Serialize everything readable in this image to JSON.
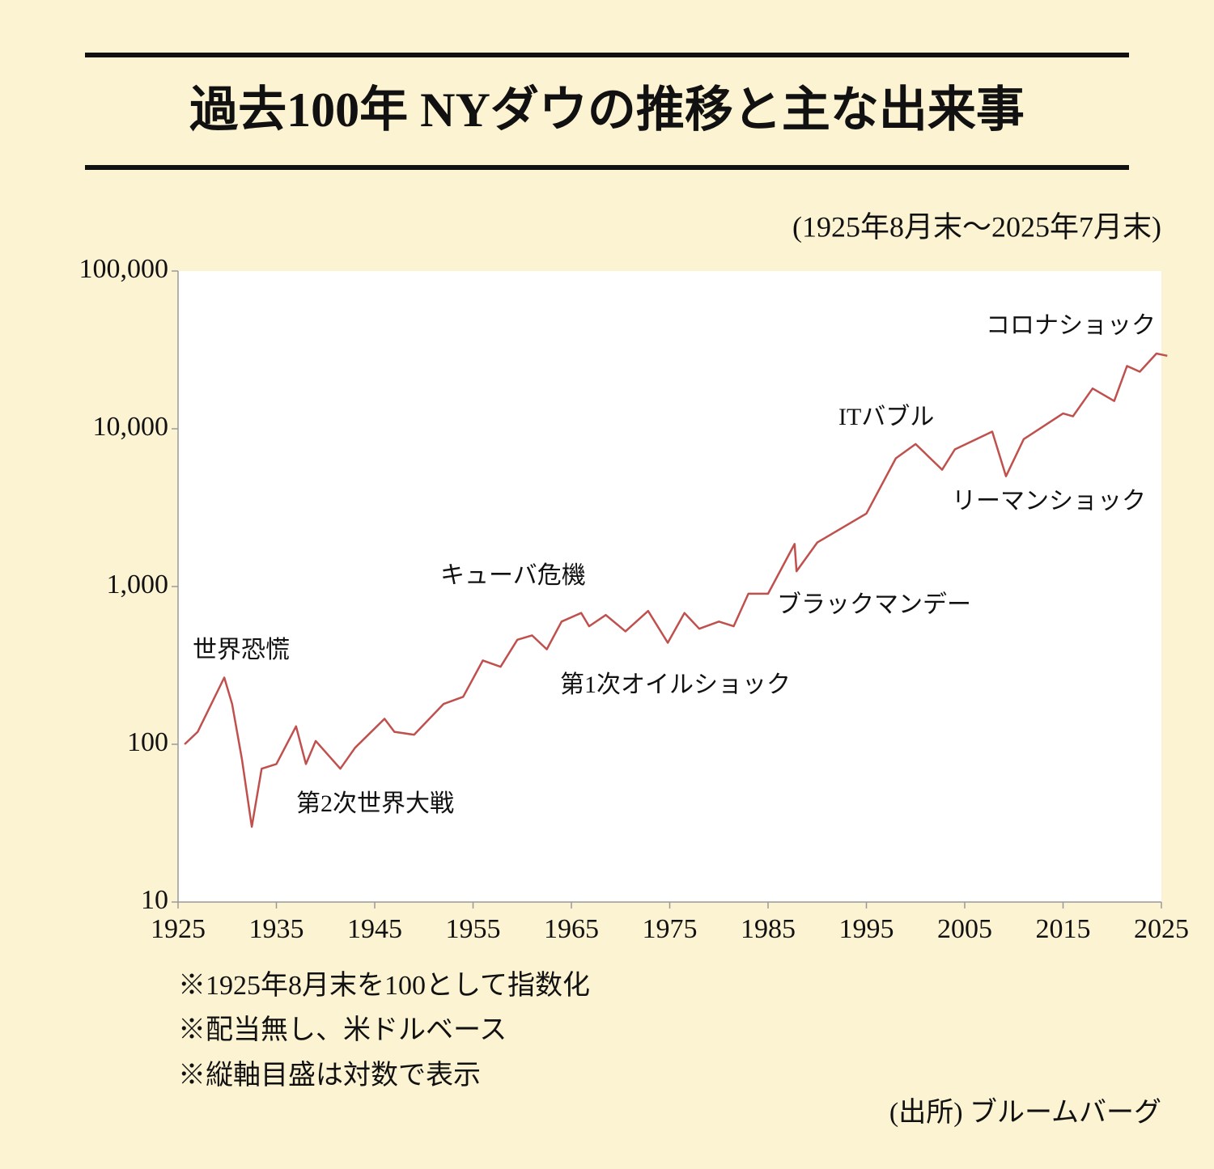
{
  "chart_data": {
    "type": "line",
    "title": "過去100年 NYダウの推移と主な出来事",
    "subtitle": "(1925年8月末～2025年7月末)",
    "log_scale": true,
    "xlim": [
      1925,
      2025
    ],
    "xticks": [
      1925,
      1935,
      1945,
      1955,
      1965,
      1975,
      1985,
      1995,
      2005,
      2015,
      2025
    ],
    "ylim": [
      10,
      100000
    ],
    "yticks": [
      {
        "value": 10,
        "label": "10"
      },
      {
        "value": 100,
        "label": "100"
      },
      {
        "value": 1000,
        "label": "1,000"
      },
      {
        "value": 10000,
        "label": "10,000"
      },
      {
        "value": 100000,
        "label": "100,000"
      }
    ],
    "x": [
      1925.67,
      1927,
      1929.7,
      1930.5,
      1931.5,
      1932.5,
      1933.5,
      1935,
      1937,
      1938,
      1939,
      1941.5,
      1943,
      1946,
      1947,
      1949,
      1952,
      1954,
      1956,
      1957.8,
      1959.5,
      1961,
      1962.5,
      1964,
      1966,
      1966.8,
      1968.5,
      1970.5,
      1972.8,
      1974.8,
      1976.5,
      1978,
      1980,
      1981.5,
      1983,
      1985,
      1987.7,
      1987.9,
      1990,
      1995,
      1998,
      2000,
      2002.7,
      2004,
      2007.8,
      2009.2,
      2011,
      2015,
      2016,
      2018,
      2020.2,
      2021.5,
      2022.8,
      2024.5,
      2025.6
    ],
    "series": [
      {
        "color": "#c0504d",
        "values": [
          100,
          120,
          265,
          180,
          80,
          30,
          70,
          75,
          130,
          75,
          105,
          70,
          95,
          145,
          120,
          115,
          180,
          200,
          340,
          310,
          460,
          490,
          400,
          600,
          680,
          560,
          660,
          520,
          700,
          440,
          680,
          540,
          600,
          560,
          900,
          900,
          1860,
          1250,
          1900,
          2900,
          6500,
          8000,
          5500,
          7400,
          9600,
          5000,
          8600,
          12500,
          12000,
          18000,
          15000,
          25000,
          23000,
          30000,
          29000
        ]
      }
    ],
    "annotations": [
      "世界恐慌",
      "第2次世界大戦",
      "キューバ危機",
      "第1次オイルショック",
      "ブラックマンデー",
      "ITバブル",
      "リーマンショック",
      "コロナショック"
    ],
    "notes": [
      "※1925年8月末を100として指数化",
      "※配当無し、米ドルベース",
      "※縦軸目盛は対数で表示"
    ],
    "source": "(出所) ブルームバーグ"
  }
}
